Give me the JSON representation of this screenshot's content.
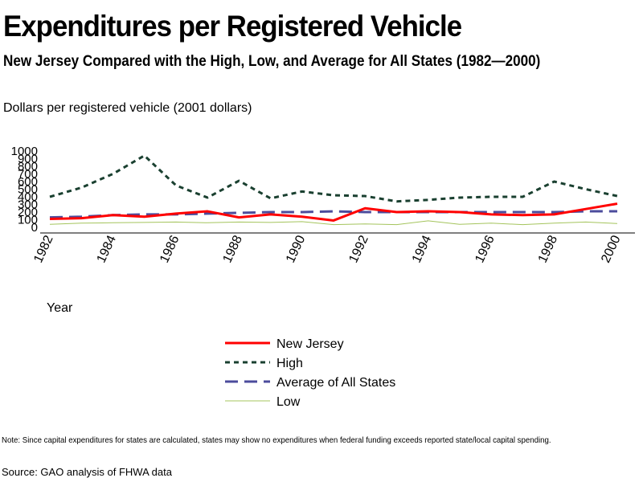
{
  "header": {
    "title": "Expenditures per Registered Vehicle",
    "subtitle": "New Jersey Compared with the High, Low, and Average for All States (1982—2000)"
  },
  "footer": {
    "note": "Note: Since capital expenditures for states are calculated, states may show no expenditures when federal funding exceeds reported state/local capital spending.",
    "source": "Source: GAO analysis of FHWA data"
  },
  "chart_data": {
    "type": "line",
    "title": "Expenditures per Registered Vehicle",
    "subtitle": "New Jersey Compared with the High, Low, and Average for All States (1982—2000)",
    "ylabel": "Dollars per registered vehicle (2001 dollars)",
    "xlabel": "Year",
    "x": [
      1982,
      1983,
      1984,
      1985,
      1986,
      1987,
      1988,
      1989,
      1990,
      1991,
      1992,
      1993,
      1994,
      1995,
      1996,
      1997,
      1998,
      1999,
      2000
    ],
    "xticks": [
      "1982",
      "1984",
      "1986",
      "1988",
      "1990",
      "1992",
      "1994",
      "1996",
      "1998",
      "2000"
    ],
    "yticks": [
      "0",
      "100",
      "200",
      "300",
      "400",
      "500",
      "600",
      "700",
      "800",
      "900",
      "1000"
    ],
    "ylim": [
      0,
      1000
    ],
    "grid": false,
    "legend_position": "bottom",
    "series": [
      {
        "name": "New Jersey",
        "color": "#ff0000",
        "dash": "solid",
        "values": [
          110,
          120,
          160,
          140,
          180,
          210,
          130,
          170,
          140,
          90,
          250,
          200,
          210,
          200,
          170,
          160,
          170,
          240,
          310
        ]
      },
      {
        "name": "High",
        "color": "#1a4030",
        "dash": "dotted",
        "values": [
          400,
          520,
          700,
          940,
          550,
          390,
          610,
          380,
          470,
          420,
          410,
          340,
          360,
          390,
          400,
          400,
          600,
          500,
          410
        ]
      },
      {
        "name": "Average of All States",
        "color": "#4c4c9c",
        "dash": "dashed",
        "values": [
          130,
          140,
          160,
          170,
          170,
          180,
          190,
          200,
          200,
          210,
          200,
          200,
          200,
          200,
          200,
          200,
          200,
          210,
          210
        ]
      },
      {
        "name": "Low",
        "color": "#a4c45c",
        "dash": "solid",
        "values": [
          40,
          55,
          60,
          65,
          70,
          60,
          70,
          65,
          75,
          35,
          45,
          35,
          85,
          40,
          55,
          35,
          55,
          70,
          50
        ]
      }
    ]
  }
}
